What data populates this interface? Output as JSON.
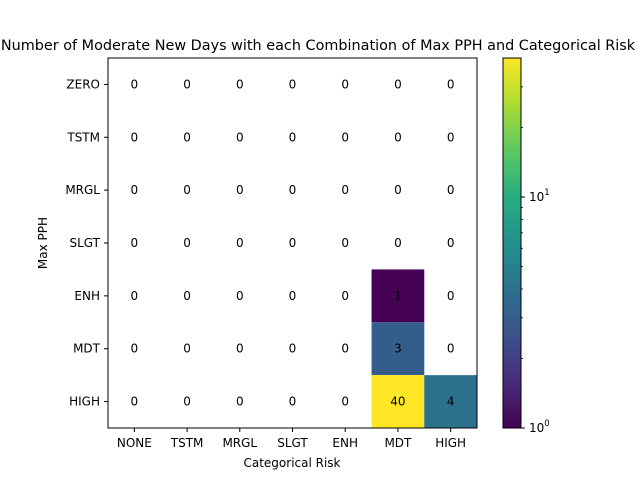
{
  "chart_data": {
    "type": "heatmap",
    "title": "Number of Moderate New Days with each Combination of Max PPH and Categorical Risk",
    "xlabel": "Categorical Risk",
    "ylabel": "Max PPH",
    "x_categories": [
      "NONE",
      "TSTM",
      "MRGL",
      "SLGT",
      "ENH",
      "MDT",
      "HIGH"
    ],
    "y_categories": [
      "ZERO",
      "TSTM",
      "MRGL",
      "SLGT",
      "ENH",
      "MDT",
      "HIGH"
    ],
    "values": [
      [
        0,
        0,
        0,
        0,
        0,
        0,
        0
      ],
      [
        0,
        0,
        0,
        0,
        0,
        0,
        0
      ],
      [
        0,
        0,
        0,
        0,
        0,
        0,
        0
      ],
      [
        0,
        0,
        0,
        0,
        0,
        0,
        0
      ],
      [
        0,
        0,
        0,
        0,
        0,
        1,
        0
      ],
      [
        0,
        0,
        0,
        0,
        0,
        3,
        0
      ],
      [
        0,
        0,
        0,
        0,
        0,
        40,
        4
      ]
    ],
    "colorbar": {
      "scale": "log",
      "range": [
        1,
        40
      ],
      "colormap": "viridis",
      "ticks": [
        {
          "value": 1,
          "base": "10",
          "exp": "0"
        },
        {
          "value": 10,
          "base": "10",
          "exp": "1"
        }
      ]
    },
    "zero_cells": "unfilled",
    "grid": false
  }
}
